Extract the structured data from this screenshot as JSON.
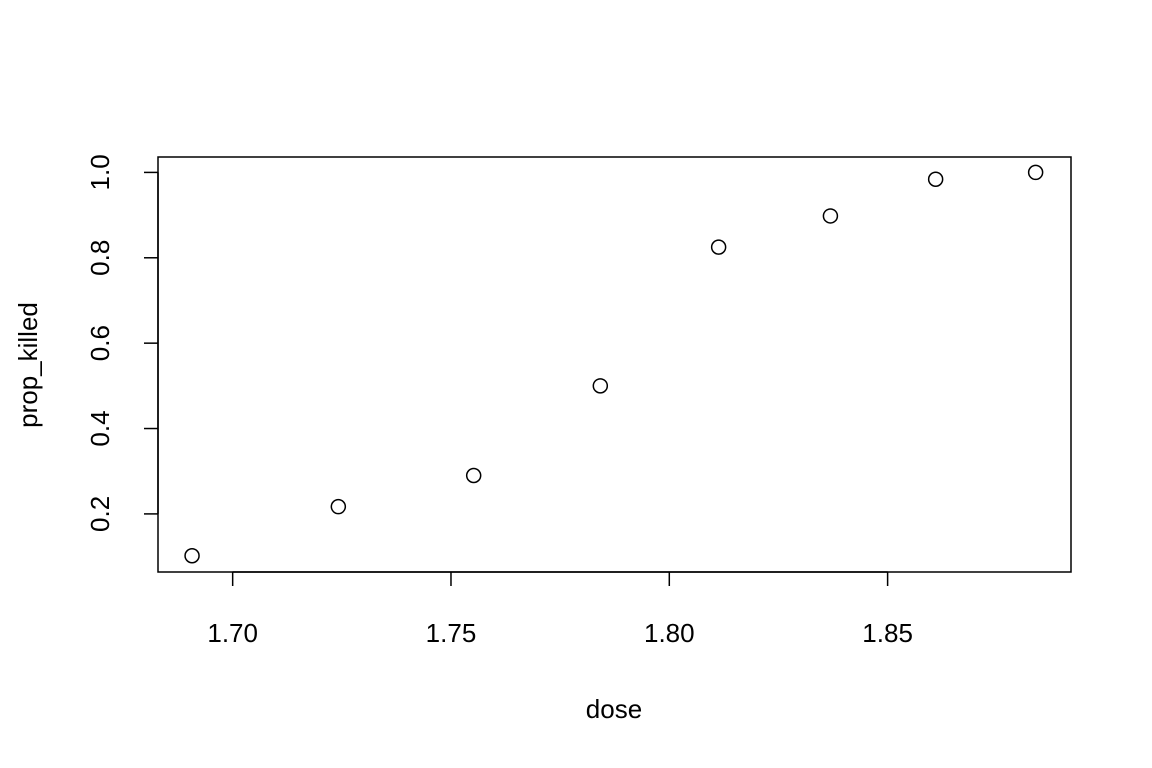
{
  "chart_data": {
    "type": "scatter",
    "title": "",
    "xlabel": "dose",
    "ylabel": "prop_killed",
    "xlim": [
      1.6829,
      1.892
    ],
    "ylim": [
      0.0639,
      1.0361
    ],
    "x_ticks": [
      "1.70",
      "1.75",
      "1.80",
      "1.85"
    ],
    "x_tick_values": [
      1.7,
      1.75,
      1.8,
      1.85
    ],
    "y_ticks": [
      "0.2",
      "0.4",
      "0.6",
      "0.8",
      "1.0"
    ],
    "y_tick_values": [
      0.2,
      0.4,
      0.6,
      0.8,
      1.0
    ],
    "grid": false,
    "legend": "none",
    "marker": "open-circle",
    "points": [
      {
        "x": 1.6907,
        "y": 0.102
      },
      {
        "x": 1.7242,
        "y": 0.217
      },
      {
        "x": 1.7552,
        "y": 0.29
      },
      {
        "x": 1.7842,
        "y": 0.5
      },
      {
        "x": 1.8113,
        "y": 0.825
      },
      {
        "x": 1.8369,
        "y": 0.898
      },
      {
        "x": 1.861,
        "y": 0.984
      },
      {
        "x": 1.8839,
        "y": 1.0
      }
    ]
  }
}
